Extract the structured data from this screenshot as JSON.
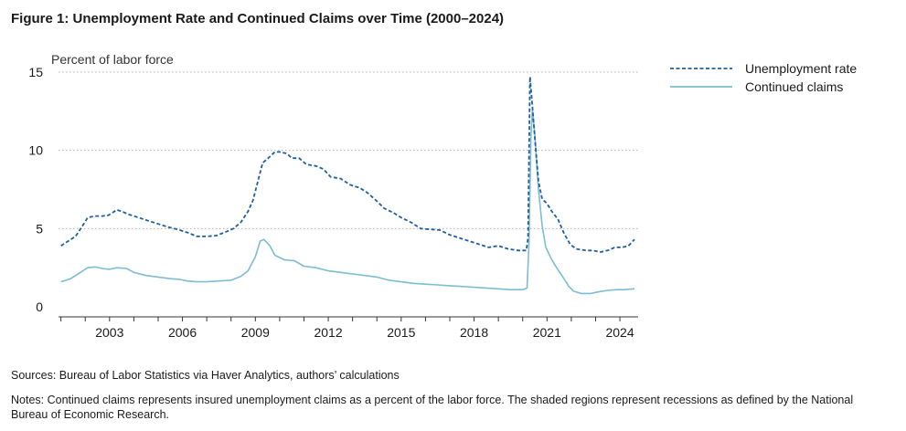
{
  "figure": {
    "title": "Figure 1: Unemployment Rate and Continued Claims over Time (2000–2024)",
    "sources": "Sources: Bureau of Labor Statistics via Haver Analytics, authors’ calculations",
    "notes": "Notes: Continued claims represents insured unemployment claims as a percent of the labor force. The shaded regions represent recessions as defined by the National Bureau of Economic Research."
  },
  "colors": {
    "unemployment": "#1f5fa0",
    "claims": "#7dbcd1",
    "grid": "#b5b5b5",
    "axis": "#333333"
  },
  "chart_data": {
    "type": "line",
    "title": "",
    "xlabel": "",
    "ylabel": "Percent of labor force",
    "xlim": [
      2000.9,
      2024.75
    ],
    "ylim": [
      0,
      15
    ],
    "yticks": [
      0,
      5,
      10,
      15
    ],
    "xticks": [
      2003,
      2006,
      2009,
      2012,
      2015,
      2018,
      2021,
      2024
    ],
    "grid": "horizontal dotted",
    "legend": "top-right",
    "series": [
      {
        "name": "Unemployment rate",
        "style": "dashed",
        "color": "#1f5fa0",
        "points": [
          [
            2001.0,
            3.9
          ],
          [
            2001.3,
            4.2
          ],
          [
            2001.6,
            4.5
          ],
          [
            2001.9,
            5.2
          ],
          [
            2002.1,
            5.7
          ],
          [
            2002.4,
            5.8
          ],
          [
            2002.7,
            5.8
          ],
          [
            2002.95,
            5.85
          ],
          [
            2003.1,
            6.0
          ],
          [
            2003.3,
            6.2
          ],
          [
            2003.5,
            6.1
          ],
          [
            2003.8,
            5.9
          ],
          [
            2004.2,
            5.7
          ],
          [
            2004.6,
            5.5
          ],
          [
            2005.0,
            5.3
          ],
          [
            2005.4,
            5.1
          ],
          [
            2005.8,
            4.95
          ],
          [
            2006.2,
            4.75
          ],
          [
            2006.6,
            4.5
          ],
          [
            2007.0,
            4.5
          ],
          [
            2007.4,
            4.55
          ],
          [
            2007.8,
            4.8
          ],
          [
            2008.1,
            5.0
          ],
          [
            2008.4,
            5.4
          ],
          [
            2008.7,
            6.1
          ],
          [
            2008.9,
            6.8
          ],
          [
            2009.1,
            8.0
          ],
          [
            2009.3,
            9.2
          ],
          [
            2009.6,
            9.6
          ],
          [
            2009.8,
            9.9
          ],
          [
            2010.0,
            9.9
          ],
          [
            2010.3,
            9.8
          ],
          [
            2010.5,
            9.5
          ],
          [
            2010.8,
            9.5
          ],
          [
            2011.1,
            9.1
          ],
          [
            2011.5,
            9.0
          ],
          [
            2011.8,
            8.8
          ],
          [
            2012.1,
            8.3
          ],
          [
            2012.5,
            8.2
          ],
          [
            2012.9,
            7.8
          ],
          [
            2013.3,
            7.6
          ],
          [
            2013.6,
            7.3
          ],
          [
            2013.9,
            6.9
          ],
          [
            2014.3,
            6.3
          ],
          [
            2014.7,
            6.0
          ],
          [
            2015.0,
            5.7
          ],
          [
            2015.4,
            5.4
          ],
          [
            2015.8,
            5.0
          ],
          [
            2016.2,
            4.95
          ],
          [
            2016.6,
            4.9
          ],
          [
            2017.0,
            4.6
          ],
          [
            2017.4,
            4.4
          ],
          [
            2017.8,
            4.2
          ],
          [
            2018.2,
            4.0
          ],
          [
            2018.6,
            3.8
          ],
          [
            2019.0,
            3.9
          ],
          [
            2019.4,
            3.7
          ],
          [
            2019.8,
            3.6
          ],
          [
            2020.15,
            3.6
          ],
          [
            2020.22,
            4.4
          ],
          [
            2020.3,
            14.7
          ],
          [
            2020.38,
            13.2
          ],
          [
            2020.5,
            10.8
          ],
          [
            2020.65,
            8.0
          ],
          [
            2020.8,
            6.9
          ],
          [
            2021.0,
            6.6
          ],
          [
            2021.2,
            6.1
          ],
          [
            2021.45,
            5.6
          ],
          [
            2021.7,
            4.7
          ],
          [
            2021.95,
            4.0
          ],
          [
            2022.2,
            3.7
          ],
          [
            2022.6,
            3.6
          ],
          [
            2022.9,
            3.6
          ],
          [
            2023.2,
            3.5
          ],
          [
            2023.5,
            3.6
          ],
          [
            2023.8,
            3.8
          ],
          [
            2024.1,
            3.8
          ],
          [
            2024.35,
            3.9
          ],
          [
            2024.6,
            4.3
          ]
        ]
      },
      {
        "name": "Continued claims",
        "style": "solid",
        "color": "#7dbcd1",
        "points": [
          [
            2001.0,
            1.6
          ],
          [
            2001.4,
            1.8
          ],
          [
            2001.8,
            2.2
          ],
          [
            2002.1,
            2.5
          ],
          [
            2002.4,
            2.55
          ],
          [
            2002.7,
            2.45
          ],
          [
            2003.0,
            2.4
          ],
          [
            2003.3,
            2.5
          ],
          [
            2003.7,
            2.45
          ],
          [
            2004.0,
            2.2
          ],
          [
            2004.5,
            2.0
          ],
          [
            2005.0,
            1.9
          ],
          [
            2005.5,
            1.8
          ],
          [
            2005.9,
            1.75
          ],
          [
            2006.2,
            1.65
          ],
          [
            2006.6,
            1.6
          ],
          [
            2007.0,
            1.6
          ],
          [
            2007.5,
            1.65
          ],
          [
            2008.0,
            1.7
          ],
          [
            2008.4,
            1.95
          ],
          [
            2008.7,
            2.3
          ],
          [
            2009.0,
            3.2
          ],
          [
            2009.2,
            4.2
          ],
          [
            2009.35,
            4.3
          ],
          [
            2009.6,
            3.9
          ],
          [
            2009.8,
            3.3
          ],
          [
            2010.2,
            3.0
          ],
          [
            2010.6,
            2.95
          ],
          [
            2011.0,
            2.6
          ],
          [
            2011.5,
            2.5
          ],
          [
            2012.0,
            2.3
          ],
          [
            2012.5,
            2.2
          ],
          [
            2013.0,
            2.1
          ],
          [
            2013.5,
            2.0
          ],
          [
            2014.0,
            1.9
          ],
          [
            2014.5,
            1.7
          ],
          [
            2015.0,
            1.6
          ],
          [
            2015.5,
            1.5
          ],
          [
            2016.0,
            1.45
          ],
          [
            2016.5,
            1.4
          ],
          [
            2017.0,
            1.35
          ],
          [
            2017.5,
            1.3
          ],
          [
            2018.0,
            1.25
          ],
          [
            2018.5,
            1.2
          ],
          [
            2019.0,
            1.15
          ],
          [
            2019.5,
            1.1
          ],
          [
            2020.0,
            1.1
          ],
          [
            2020.18,
            1.2
          ],
          [
            2020.26,
            4.0
          ],
          [
            2020.34,
            11.0
          ],
          [
            2020.4,
            12.6
          ],
          [
            2020.5,
            11.0
          ],
          [
            2020.65,
            7.5
          ],
          [
            2020.8,
            5.2
          ],
          [
            2020.95,
            3.8
          ],
          [
            2021.2,
            3.0
          ],
          [
            2021.4,
            2.5
          ],
          [
            2021.7,
            1.8
          ],
          [
            2021.9,
            1.3
          ],
          [
            2022.1,
            1.0
          ],
          [
            2022.4,
            0.85
          ],
          [
            2022.8,
            0.85
          ],
          [
            2023.1,
            0.95
          ],
          [
            2023.5,
            1.05
          ],
          [
            2023.9,
            1.1
          ],
          [
            2024.2,
            1.1
          ],
          [
            2024.6,
            1.15
          ]
        ]
      }
    ]
  }
}
